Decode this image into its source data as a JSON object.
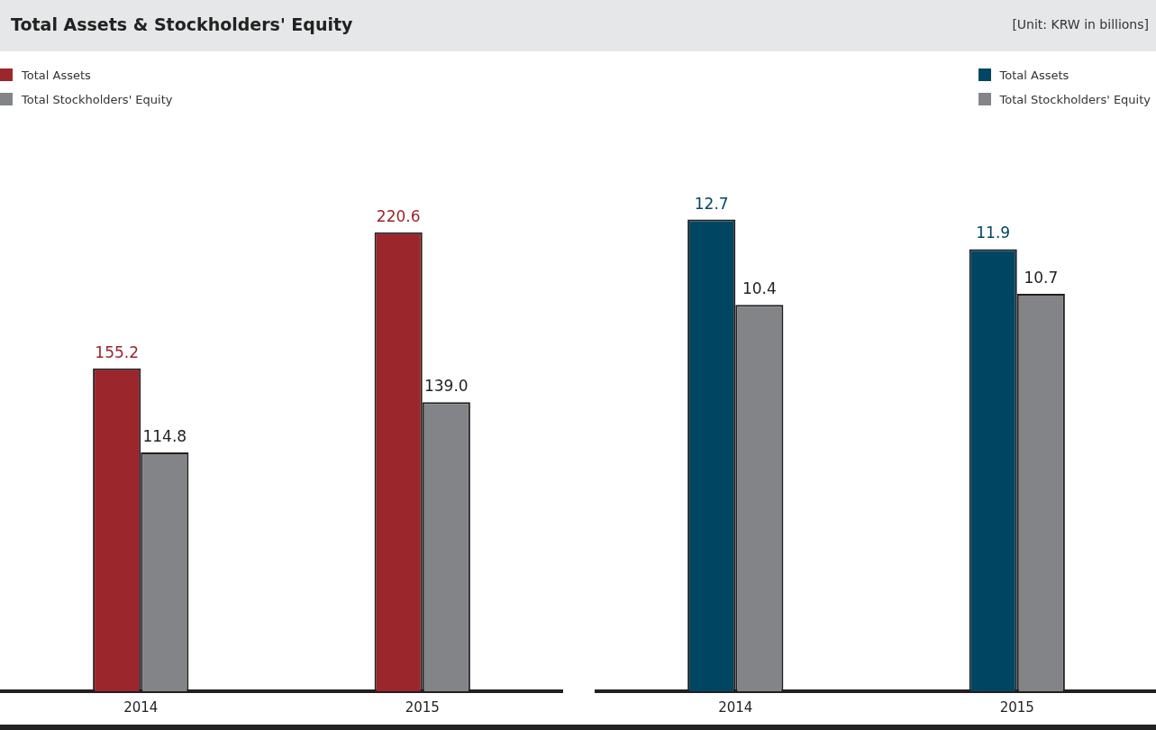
{
  "chart_data": [
    {
      "type": "bar",
      "title": "Total Assets & Stockholders' Equity",
      "annotations": [
        "[Unit: KRW in billions]"
      ],
      "categories": [
        "2014",
        "2015"
      ],
      "legend": "top left",
      "grid": false,
      "tick_labels": "x",
      "series": [
        {
          "name": "Total Assets",
          "color": "#9b262c",
          "values": [
            155.2,
            220.6
          ],
          "value_labels": [
            "155.2",
            "220.6"
          ]
        },
        {
          "name": "Total Stockholders' Equity",
          "color": "#838487",
          "values": [
            114.8,
            139.0
          ],
          "value_labels": [
            "114.8",
            "139.0"
          ]
        }
      ]
    },
    {
      "type": "bar",
      "categories": [
        "2014",
        "2015"
      ],
      "legend": "top right",
      "grid": false,
      "tick_labels": "x",
      "series": [
        {
          "name": "Total Assets",
          "color": "#004662",
          "values": [
            12.7,
            11.9
          ],
          "value_labels": [
            "12.7",
            "11.9"
          ]
        },
        {
          "name": "Total Stockholders' Equity",
          "color": "#838487",
          "values": [
            10.4,
            10.7
          ],
          "value_labels": [
            "10.4",
            "10.7"
          ]
        }
      ]
    }
  ]
}
